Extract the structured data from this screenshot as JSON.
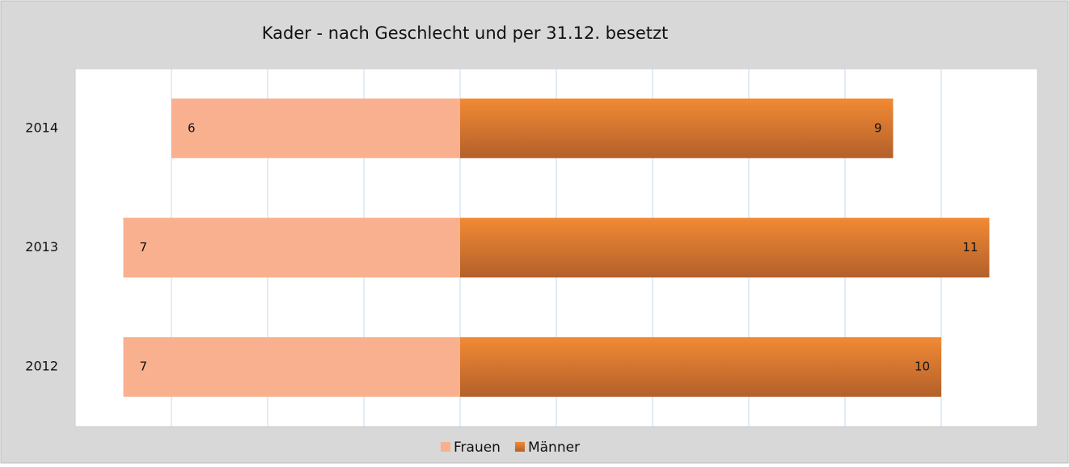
{
  "chart_data": {
    "type": "diverging_bar",
    "title": "Kader - nach Geschlecht und per 31.12. besetzt",
    "categories": [
      "2014",
      "2013",
      "2012"
    ],
    "series": [
      {
        "name": "Frauen",
        "color": "#f9b08e",
        "direction": "left",
        "values": [
          6,
          7,
          7
        ]
      },
      {
        "name": "Männer",
        "color": "#f28a34",
        "direction": "right",
        "values": [
          9,
          11,
          10
        ]
      }
    ],
    "xlim": [
      -8,
      12
    ],
    "xticks": [
      -6,
      -4,
      -2,
      0,
      2,
      4,
      6,
      8,
      10
    ],
    "tick_labels": false,
    "grid": true,
    "legend": "bottom"
  }
}
